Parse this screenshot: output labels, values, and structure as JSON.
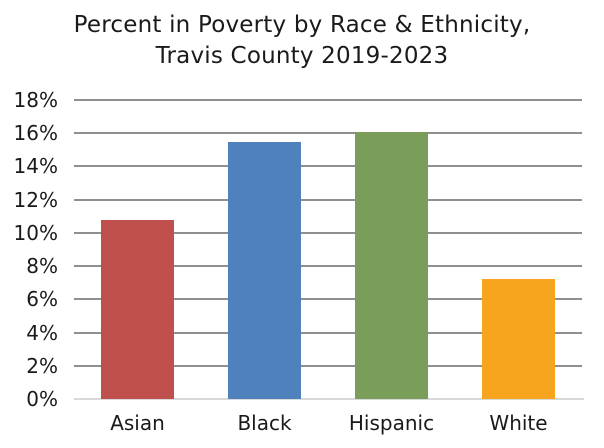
{
  "chart_data": {
    "type": "bar",
    "title": "Percent in Poverty by Race & Ethnicity, Travis County 2019-2023",
    "title_lines": [
      "Percent in Poverty by Race & Ethnicity,",
      "Travis County 2019-2023"
    ],
    "categories": [
      "Asian",
      "Black",
      "Hispanic",
      "White"
    ],
    "values": [
      10.8,
      15.5,
      16.1,
      7.2
    ],
    "bar_colors": [
      "#C0504D",
      "#4F81BD",
      "#7A9D59",
      "#F7A41E"
    ],
    "xlabel": "",
    "ylabel": "",
    "ylim": [
      0,
      18
    ],
    "ytick_step": 2,
    "ytick_labels": [
      "0%",
      "2%",
      "4%",
      "6%",
      "8%",
      "10%",
      "12%",
      "14%",
      "16%",
      "18%"
    ],
    "grid": true,
    "legend": "none",
    "gridline_color": "#8F8F8F",
    "baseline_color": "#D9D9D9",
    "text_color": "#1a1a1a",
    "background_color": "#FFFFFF"
  }
}
